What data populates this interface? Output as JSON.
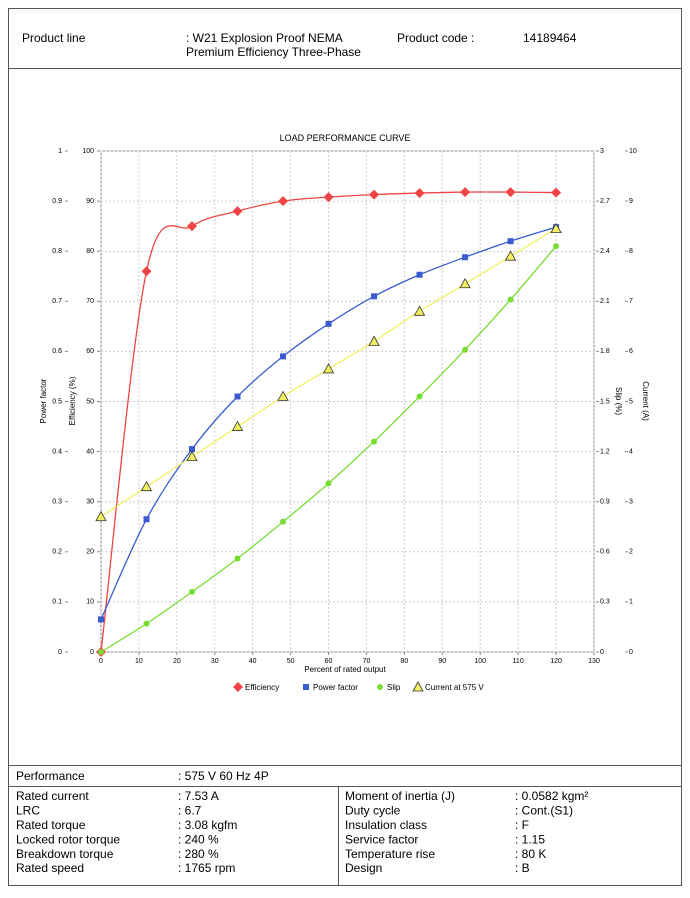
{
  "header": {
    "product_line_label": "Product line",
    "product_line_value": [
      ": W21 Explosion Proof NEMA",
      "Premium Efficiency Three-Phase"
    ],
    "product_code_label": "Product code :",
    "product_code": "14189464"
  },
  "chart_data": {
    "type": "line",
    "title": "LOAD PERFORMANCE CURVE",
    "xlabel": "Percent of rated output",
    "x": [
      0,
      12,
      24,
      36,
      48,
      60,
      72,
      84,
      96,
      108,
      120
    ],
    "xlim": [
      0,
      130
    ],
    "xticks": [
      0,
      10,
      20,
      30,
      40,
      50,
      60,
      70,
      80,
      90,
      100,
      110,
      120,
      130
    ],
    "ylabel": "Power factor",
    "ylim": [
      0,
      1
    ],
    "yticks": [
      0,
      0.1,
      0.2,
      0.3,
      0.4,
      0.5,
      0.6,
      0.7,
      0.8,
      0.9,
      1
    ],
    "y2label": "Efficiency (%)",
    "y2lim": [
      0,
      100
    ],
    "y2ticks": [
      0,
      10,
      20,
      30,
      40,
      50,
      60,
      70,
      80,
      90,
      100
    ],
    "y3label": "Slip (%)",
    "y3lim": [
      0,
      3
    ],
    "y3ticks": [
      0,
      0.3,
      0.6,
      0.9,
      1.2,
      1.5,
      1.8,
      2.1,
      2.4,
      2.7,
      3
    ],
    "y4label": "Current (A)",
    "y4lim": [
      0,
      10
    ],
    "y4ticks": [
      0,
      1,
      2,
      3,
      4,
      5,
      6,
      7,
      8,
      9,
      10
    ],
    "grid": true,
    "series": [
      {
        "name": "Efficiency",
        "color": "#f04444",
        "marker": "diamond",
        "axis": "y2",
        "values": [
          0,
          76,
          85,
          88,
          90,
          90.8,
          91.3,
          91.6,
          91.8,
          91.8,
          91.7
        ]
      },
      {
        "name": "Power factor",
        "color": "#3a5bd0",
        "marker": "square",
        "axis": "y",
        "values": [
          0.065,
          0.265,
          0.405,
          0.51,
          0.59,
          0.655,
          0.71,
          0.753,
          0.788,
          0.82,
          0.848
        ]
      },
      {
        "name": "Slip",
        "color": "#77dd33",
        "marker": "circle",
        "axis": "y3",
        "values": [
          0,
          0.17,
          0.36,
          0.56,
          0.78,
          1.01,
          1.26,
          1.53,
          1.81,
          2.11,
          2.43
        ]
      },
      {
        "name": "Current at 575 V",
        "color": "#f2f060",
        "marker": "triangle",
        "axis": "y4",
        "values": [
          2.7,
          3.3,
          3.9,
          4.5,
          5.1,
          5.65,
          6.2,
          6.8,
          7.35,
          7.9,
          8.45
        ]
      }
    ]
  },
  "table": {
    "performance": [
      "Performance",
      ": 575 V 60 Hz 4P"
    ],
    "left": [
      [
        "Rated current",
        ": 7.53 A"
      ],
      [
        "LRC",
        ": 6.7"
      ],
      [
        "Rated torque",
        ": 3.08 kgfm"
      ],
      [
        "Locked rotor torque",
        ": 240 %"
      ],
      [
        "Breakdown torque",
        ": 280 %"
      ],
      [
        "Rated speed",
        ": 1765 rpm"
      ]
    ],
    "right": [
      [
        "Moment of inertia (J)",
        ": 0.0582 kgm²"
      ],
      [
        "Duty cycle",
        ": Cont.(S1)"
      ],
      [
        "Insulation class",
        ": F"
      ],
      [
        "Service factor",
        ": 1.15"
      ],
      [
        "Temperature rise",
        ": 80 K"
      ],
      [
        "Design",
        ": B"
      ]
    ]
  }
}
